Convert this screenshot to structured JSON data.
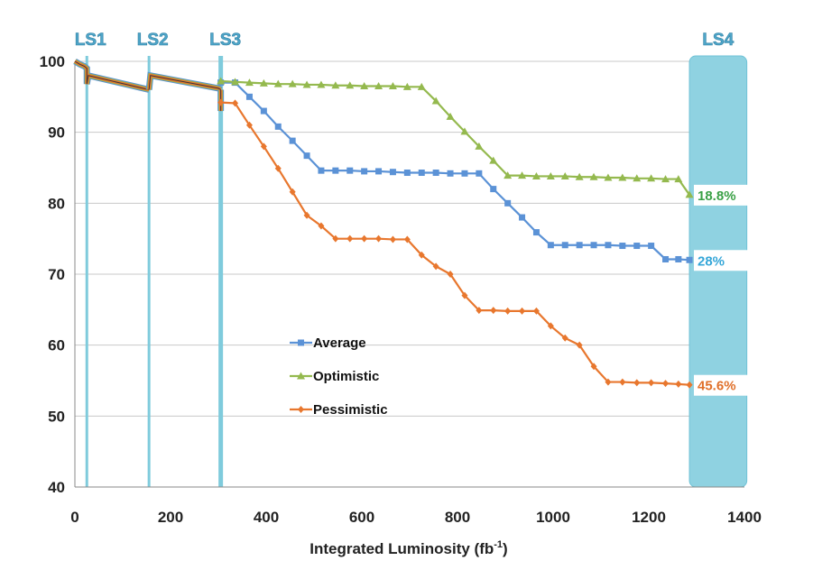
{
  "chart_data": {
    "type": "line",
    "title": "",
    "xlabel": "Integrated Luminosity (fb",
    "xlabel_sup": "-1",
    "xlabel_tail": ")",
    "ylabel": "",
    "xlim": [
      0,
      1400
    ],
    "ylim": [
      40,
      100
    ],
    "xticks": [
      0,
      200,
      400,
      600,
      800,
      1000,
      1200,
      1400
    ],
    "yticks": [
      40,
      50,
      60,
      70,
      80,
      90,
      100
    ],
    "grid": "horizontal",
    "legend_position": "center",
    "shutdowns": [
      {
        "label": "LS1",
        "x": 25
      },
      {
        "label": "LS2",
        "x": 155
      },
      {
        "label": "LS3",
        "x": 305
      },
      {
        "label": "LS4",
        "x_range": [
          1285,
          1405
        ]
      }
    ],
    "prefix_segments": [
      {
        "x": [
          0,
          10,
          20,
          25,
          25,
          28,
          155
        ],
        "y": [
          100,
          99.6,
          99.3,
          99,
          96.8,
          98,
          96
        ]
      },
      {
        "x": [
          155,
          158,
          300,
          305
        ],
        "y": [
          96,
          98,
          96.2,
          96
        ]
      },
      {
        "x": [
          305,
          305
        ],
        "y": [
          96,
          93
        ]
      }
    ],
    "series": [
      {
        "name": "Average",
        "color": "#5b92d6",
        "marker": "square",
        "x": [
          305,
          335,
          365,
          395,
          425,
          455,
          485,
          515,
          545,
          575,
          605,
          635,
          665,
          695,
          725,
          755,
          785,
          815,
          845,
          875,
          905,
          935,
          965,
          995,
          1025,
          1055,
          1085,
          1115,
          1145,
          1175,
          1205,
          1235,
          1262,
          1285
        ],
        "y": [
          97,
          97,
          95,
          93,
          90.8,
          88.8,
          86.7,
          84.6,
          84.6,
          84.6,
          84.5,
          84.5,
          84.4,
          84.3,
          84.3,
          84.3,
          84.2,
          84.2,
          84.2,
          82,
          80,
          78,
          75.9,
          74.1,
          74.1,
          74.1,
          74.1,
          74.1,
          74,
          74,
          74,
          72.1,
          72.1,
          72
        ]
      },
      {
        "name": "Optimistic",
        "color": "#94b94e",
        "marker": "triangle",
        "x": [
          305,
          335,
          365,
          395,
          425,
          455,
          485,
          515,
          545,
          575,
          605,
          635,
          665,
          695,
          725,
          755,
          785,
          815,
          845,
          875,
          905,
          935,
          965,
          995,
          1025,
          1055,
          1085,
          1115,
          1145,
          1175,
          1205,
          1235,
          1262,
          1285
        ],
        "y": [
          97.2,
          97.1,
          97,
          96.9,
          96.8,
          96.8,
          96.7,
          96.7,
          96.6,
          96.6,
          96.5,
          96.5,
          96.5,
          96.4,
          96.4,
          94.4,
          92.2,
          90.1,
          88,
          86,
          83.9,
          83.9,
          83.8,
          83.8,
          83.8,
          83.7,
          83.7,
          83.6,
          83.6,
          83.5,
          83.5,
          83.4,
          83.4,
          81.2
        ]
      },
      {
        "name": "Pessimistic",
        "color": "#e8772e",
        "marker": "diamond",
        "x": [
          305,
          335,
          365,
          395,
          425,
          455,
          485,
          515,
          545,
          575,
          605,
          635,
          665,
          695,
          725,
          755,
          785,
          815,
          845,
          875,
          905,
          935,
          965,
          995,
          1025,
          1055,
          1085,
          1115,
          1145,
          1175,
          1205,
          1235,
          1262,
          1285
        ],
        "y": [
          94.2,
          94.1,
          91,
          88,
          84.9,
          81.6,
          78.3,
          76.8,
          75,
          75,
          75,
          75,
          74.9,
          74.9,
          72.7,
          71.1,
          70,
          67,
          64.9,
          64.9,
          64.8,
          64.8,
          64.8,
          62.7,
          61,
          60,
          57,
          54.8,
          54.8,
          54.7,
          54.7,
          54.6,
          54.5,
          54.4
        ]
      }
    ],
    "end_labels": [
      {
        "text": "18.8%",
        "color": "#3aa046",
        "y": 81.2
      },
      {
        "text": "28%",
        "color": "#34a6d8",
        "y": 72
      },
      {
        "text": "45.6%",
        "color": "#e0702a",
        "y": 54.4
      }
    ]
  }
}
